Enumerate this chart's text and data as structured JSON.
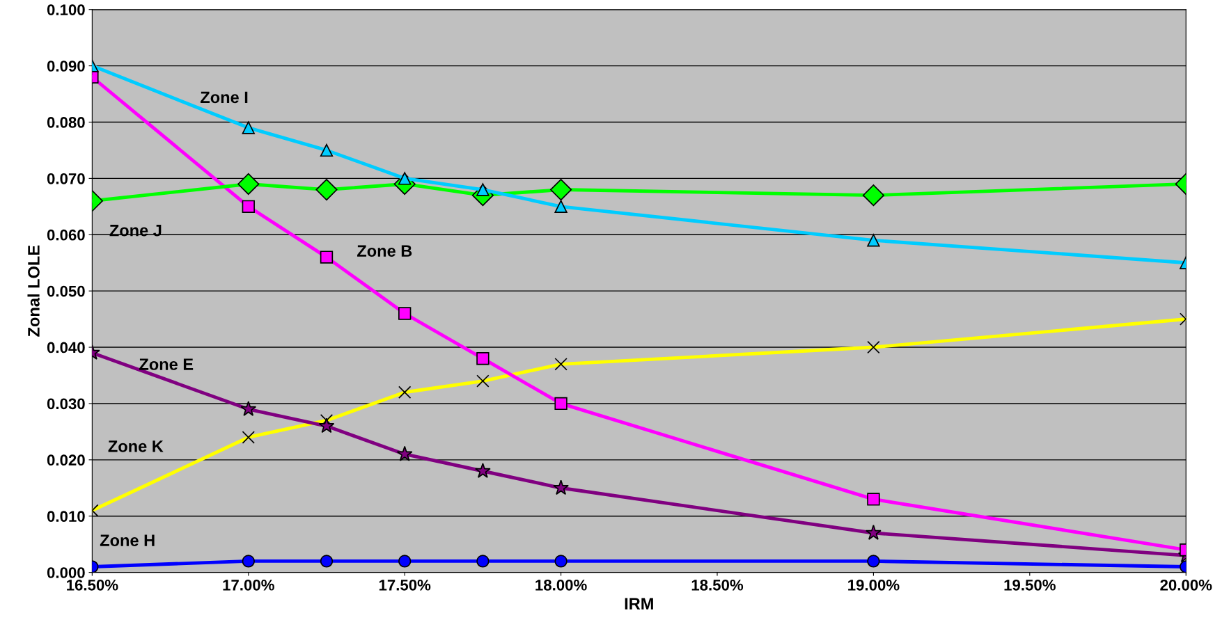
{
  "chart_data": {
    "type": "line",
    "xlabel": "IRM",
    "ylabel": "Zonal LOLE",
    "x": [
      16.5,
      17.0,
      17.25,
      17.5,
      17.75,
      18.0,
      19.0,
      20.0
    ],
    "series": [
      {
        "name": "Zone I",
        "color": "#00ccff",
        "marker": "triangle",
        "values": [
          0.09,
          0.079,
          0.075,
          0.07,
          0.068,
          0.065,
          0.059,
          0.055
        ]
      },
      {
        "name": "Zone J",
        "color": "#00ff00",
        "marker": "diamond",
        "values": [
          0.066,
          0.069,
          0.068,
          0.069,
          0.067,
          0.068,
          0.067,
          0.069
        ]
      },
      {
        "name": "Zone B",
        "color": "#ff00ff",
        "marker": "square",
        "values": [
          0.088,
          0.065,
          0.056,
          0.046,
          0.038,
          0.03,
          0.013,
          0.004
        ]
      },
      {
        "name": "Zone E",
        "color": "#800080",
        "marker": "star",
        "values": [
          0.039,
          0.029,
          0.026,
          0.021,
          0.018,
          0.015,
          0.007,
          0.003
        ]
      },
      {
        "name": "Zone K",
        "color": "#ffff00",
        "marker": "cross",
        "values": [
          0.011,
          0.024,
          0.027,
          0.032,
          0.034,
          0.037,
          0.04,
          0.045
        ]
      },
      {
        "name": "Zone H",
        "color": "#0000ff",
        "marker": "circle",
        "values": [
          0.001,
          0.002,
          0.002,
          0.002,
          0.002,
          0.002,
          0.002,
          0.001
        ]
      }
    ],
    "xlim": [
      16.5,
      20.0
    ],
    "xticks": [
      {
        "value": 16.5,
        "label": "16.50%"
      },
      {
        "value": 17.0,
        "label": "17.00%"
      },
      {
        "value": 17.5,
        "label": "17.50%"
      },
      {
        "value": 18.0,
        "label": "18.00%"
      },
      {
        "value": 18.5,
        "label": "18.50%"
      },
      {
        "value": 19.0,
        "label": "19.00%"
      },
      {
        "value": 19.5,
        "label": "19.50%"
      },
      {
        "value": 20.0,
        "label": "20.00%"
      }
    ],
    "ylim": [
      0.0,
      0.1
    ],
    "yticks": [
      {
        "value": 0.0,
        "label": "0.000"
      },
      {
        "value": 0.01,
        "label": "0.010"
      },
      {
        "value": 0.02,
        "label": "0.020"
      },
      {
        "value": 0.03,
        "label": "0.030"
      },
      {
        "value": 0.04,
        "label": "0.040"
      },
      {
        "value": 0.05,
        "label": "0.050"
      },
      {
        "value": 0.06,
        "label": "0.060"
      },
      {
        "value": 0.07,
        "label": "0.070"
      },
      {
        "value": 0.08,
        "label": "0.080"
      },
      {
        "value": 0.09,
        "label": "0.090"
      },
      {
        "value": 0.1,
        "label": "0.100"
      }
    ],
    "grid": "y",
    "legend": false,
    "line_style": "solid"
  }
}
